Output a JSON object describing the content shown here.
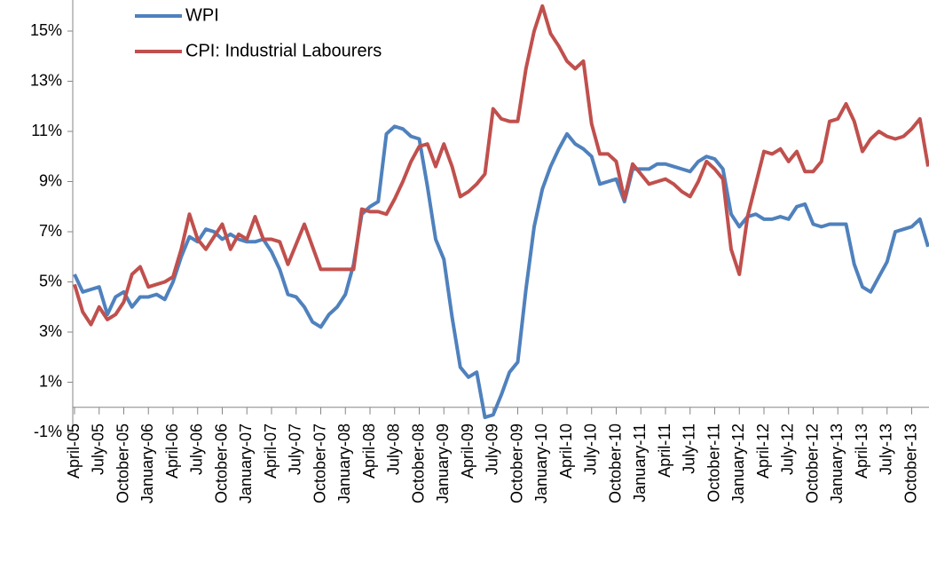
{
  "chart_data": {
    "type": "line",
    "categories": [
      "April-05",
      null,
      null,
      "July-05",
      null,
      null,
      "October-05",
      null,
      null,
      "January-06",
      null,
      null,
      "April-06",
      null,
      null,
      "July-06",
      null,
      null,
      "October-06",
      null,
      null,
      "January-07",
      null,
      null,
      "April-07",
      null,
      null,
      "July-07",
      null,
      null,
      "October-07",
      null,
      null,
      "January-08",
      null,
      null,
      "April-08",
      null,
      null,
      "July-08",
      null,
      null,
      "October-08",
      null,
      null,
      "January-09",
      null,
      null,
      "April-09",
      null,
      null,
      "July-09",
      null,
      null,
      "October-09",
      null,
      null,
      "January-10",
      null,
      null,
      "April-10",
      null,
      null,
      "July-10",
      null,
      null,
      "October-10",
      null,
      null,
      "January-11",
      null,
      null,
      "April-11",
      null,
      null,
      "July-11",
      null,
      null,
      "October-11",
      null,
      null,
      "January-12",
      null,
      null,
      "April-12",
      null,
      null,
      "July-12",
      null,
      null,
      "October-12",
      null,
      null,
      "January-13",
      null,
      null,
      "April-13",
      null,
      null,
      "July-13",
      null,
      null,
      "October-13",
      null,
      null
    ],
    "series": [
      {
        "name": "WPI",
        "color": "#4f81bd",
        "values": [
          5.3,
          4.6,
          4.7,
          4.8,
          3.7,
          4.4,
          4.6,
          4.0,
          4.4,
          4.4,
          4.5,
          4.3,
          5.0,
          6.0,
          6.8,
          6.6,
          7.1,
          7.0,
          6.7,
          6.9,
          6.7,
          6.6,
          6.6,
          6.7,
          6.2,
          5.5,
          4.5,
          4.4,
          4.0,
          3.4,
          3.2,
          3.7,
          4.0,
          4.5,
          5.7,
          7.7,
          8.0,
          8.2,
          10.9,
          11.2,
          11.1,
          10.8,
          10.7,
          8.8,
          6.7,
          5.9,
          3.6,
          1.6,
          1.2,
          1.4,
          -0.4,
          -0.3,
          0.5,
          1.4,
          1.8,
          4.7,
          7.2,
          8.7,
          9.6,
          10.3,
          10.9,
          10.5,
          10.3,
          10.0,
          8.9,
          9.0,
          9.1,
          8.2,
          9.5,
          9.5,
          9.5,
          9.7,
          9.7,
          9.6,
          9.5,
          9.4,
          9.8,
          10.0,
          9.9,
          9.5,
          7.7,
          7.2,
          7.6,
          7.7,
          7.5,
          7.5,
          7.6,
          7.5,
          8.0,
          8.1,
          7.3,
          7.2,
          7.3,
          7.3,
          7.3,
          5.7,
          4.8,
          4.6,
          5.2,
          5.8,
          7.0,
          7.1,
          7.2,
          7.5,
          6.4
        ]
      },
      {
        "name": "CPI: Industrial Labourers",
        "color": "#c0504d",
        "values": [
          4.9,
          3.8,
          3.3,
          4.0,
          3.5,
          3.7,
          4.2,
          5.3,
          5.6,
          4.8,
          4.9,
          5.0,
          5.2,
          6.3,
          7.7,
          6.7,
          6.3,
          6.8,
          7.3,
          6.3,
          6.9,
          6.7,
          7.6,
          6.7,
          6.7,
          6.6,
          5.7,
          6.5,
          7.3,
          6.4,
          5.5,
          5.5,
          5.5,
          5.5,
          5.5,
          7.9,
          7.8,
          7.8,
          7.7,
          8.3,
          9.0,
          9.8,
          10.4,
          10.5,
          9.6,
          10.5,
          9.6,
          8.4,
          8.6,
          8.9,
          9.3,
          11.9,
          11.5,
          11.4,
          11.4,
          13.5,
          15.0,
          16.0,
          14.9,
          14.4,
          13.8,
          13.5,
          13.8,
          11.3,
          10.1,
          10.1,
          9.8,
          8.3,
          9.7,
          9.3,
          8.9,
          9.0,
          9.1,
          8.9,
          8.6,
          8.4,
          9.0,
          9.8,
          9.5,
          9.1,
          6.3,
          5.3,
          7.6,
          8.9,
          10.2,
          10.1,
          10.3,
          9.8,
          10.2,
          9.4,
          9.4,
          9.8,
          11.4,
          11.5,
          12.1,
          11.4,
          10.2,
          10.7,
          11.0,
          10.8,
          10.7,
          10.8,
          11.1,
          11.5,
          9.6
        ]
      }
    ],
    "ylim": [
      -1,
      16
    ],
    "yticks": [
      {
        "value": -1,
        "label": "-1%"
      },
      {
        "value": 1,
        "label": "1%"
      },
      {
        "value": 3,
        "label": "3%"
      },
      {
        "value": 5,
        "label": "5%"
      },
      {
        "value": 7,
        "label": "7%"
      },
      {
        "value": 9,
        "label": "9%"
      },
      {
        "value": 11,
        "label": "11%"
      },
      {
        "value": 13,
        "label": "13%"
      },
      {
        "value": 15,
        "label": "15%"
      }
    ],
    "grid": false,
    "legend": "top-left"
  }
}
